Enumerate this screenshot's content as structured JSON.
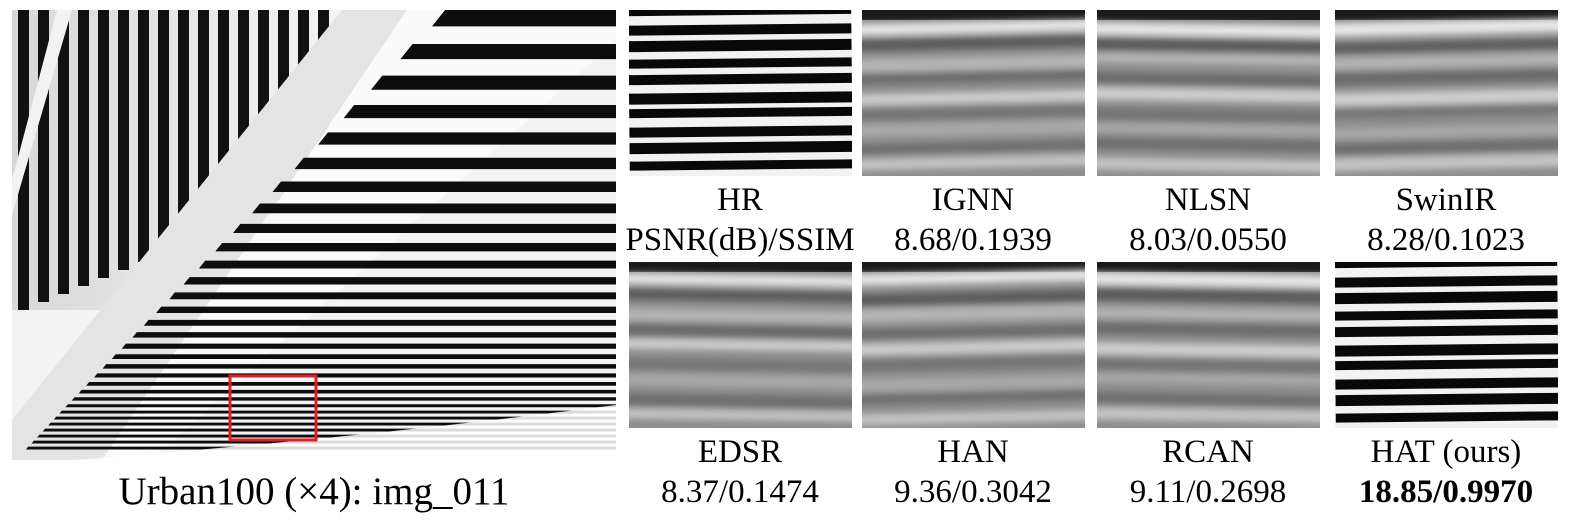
{
  "figure": {
    "main_caption": "Urban100 (×4): img_011",
    "highlight_color": "#e02020",
    "patches": [
      {
        "id": "hr",
        "label": "HR",
        "metric": "PSNR(dB)/SSIM",
        "style": "sharp"
      },
      {
        "id": "ignn",
        "label": "IGNN",
        "metric": "8.68/0.1939",
        "style": "blurry"
      },
      {
        "id": "nlsn",
        "label": "NLSN",
        "metric": "8.03/0.0550",
        "style": "blurry"
      },
      {
        "id": "swinir",
        "label": "SwinIR",
        "metric": "8.28/0.1023",
        "style": "blurry"
      },
      {
        "id": "edsr",
        "label": "EDSR",
        "metric": "8.37/0.1474",
        "style": "blurry"
      },
      {
        "id": "han",
        "label": "HAN",
        "metric": "9.36/0.3042",
        "style": "blurry"
      },
      {
        "id": "rcan",
        "label": "RCAN",
        "metric": "9.11/0.2698",
        "style": "blurry"
      },
      {
        "id": "hat",
        "label": "HAT (ours)",
        "metric": "18.85/0.9970",
        "style": "sharp",
        "bold_metric": true
      }
    ]
  }
}
